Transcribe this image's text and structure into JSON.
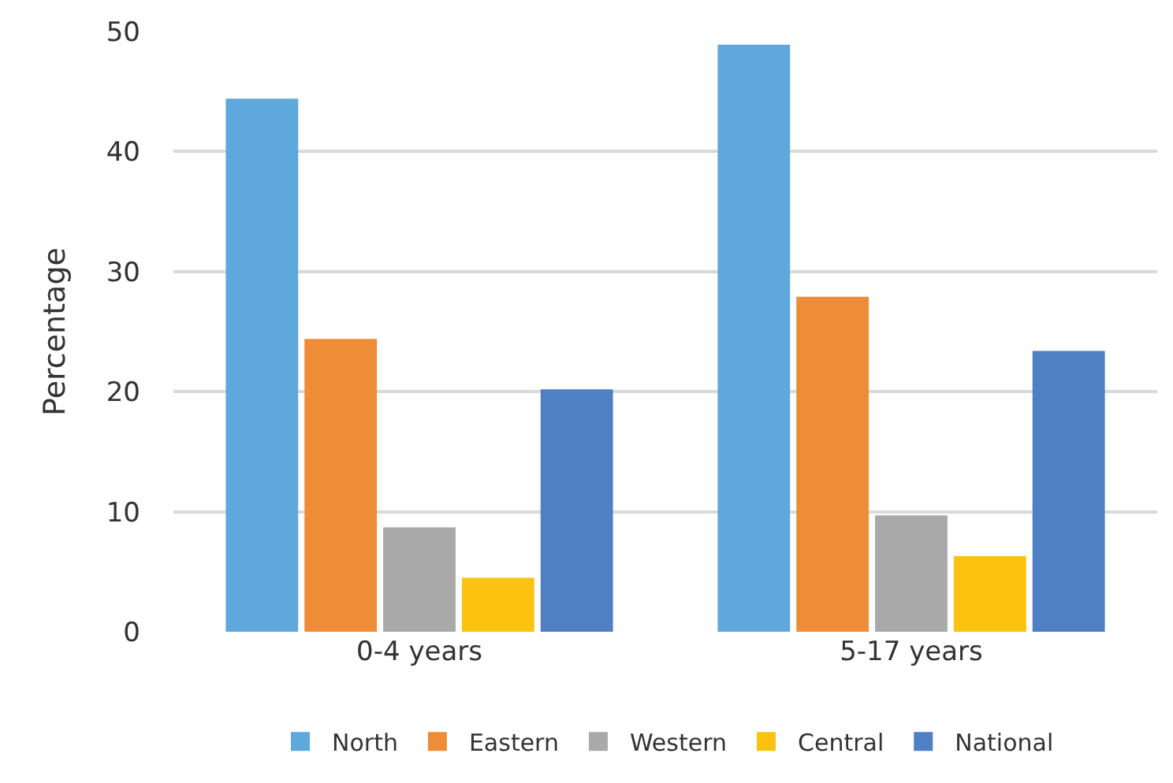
{
  "chart_data": {
    "type": "bar",
    "ylabel": "Percentage",
    "categories": [
      "0-4 years",
      "5-17 years"
    ],
    "series": [
      {
        "name": "North",
        "color": "#5fa8dc",
        "values": [
          44.4,
          48.9
        ]
      },
      {
        "name": "Eastern",
        "color": "#ef8c37",
        "values": [
          24.4,
          27.9
        ]
      },
      {
        "name": "Western",
        "color": "#a9a9a9",
        "values": [
          8.7,
          9.7
        ]
      },
      {
        "name": "Central",
        "color": "#fbc210",
        "values": [
          4.5,
          6.3
        ]
      },
      {
        "name": "National",
        "color": "#4f80c4",
        "values": [
          20.2,
          23.4
        ]
      }
    ],
    "ylim": [
      0,
      50
    ],
    "yticks": [
      0,
      10,
      20,
      30,
      40,
      50
    ],
    "grid": "y",
    "legend": "bottom"
  }
}
